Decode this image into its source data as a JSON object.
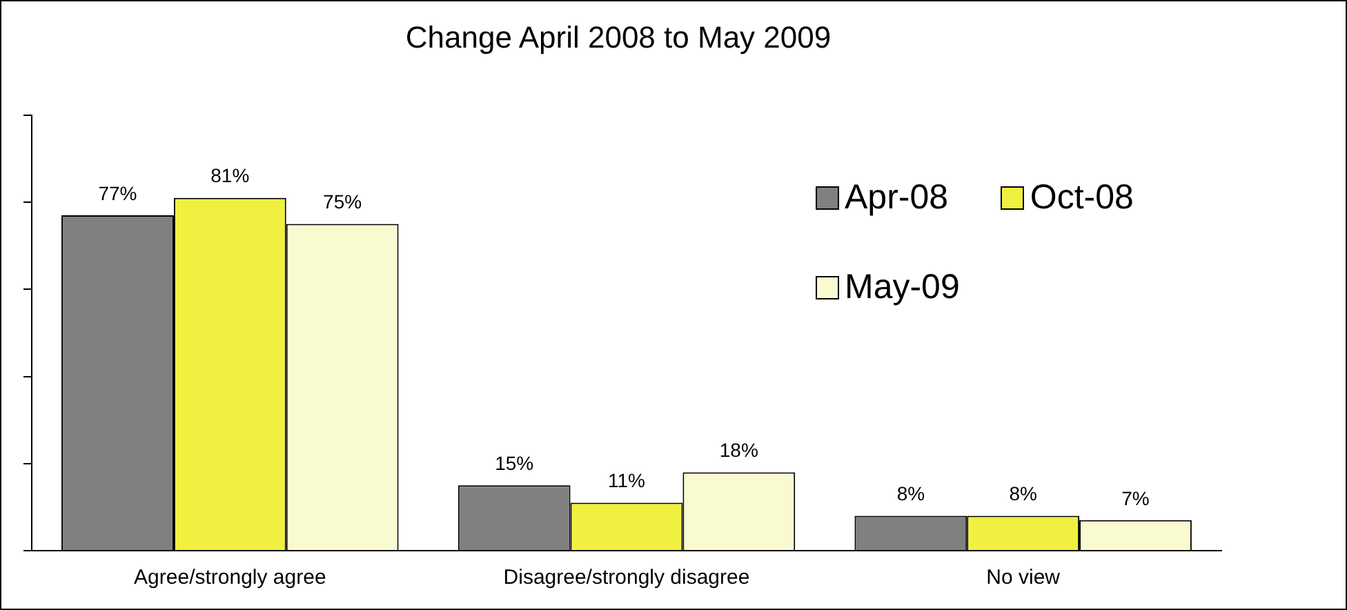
{
  "chart_data": {
    "type": "bar",
    "title": "Change April 2008 to May 2009",
    "categories": [
      "Agree/strongly agree",
      "Disagree/strongly disagree",
      "No view"
    ],
    "series": [
      {
        "name": "Apr-08",
        "color": "#808080",
        "values": [
          77,
          15,
          8
        ],
        "value_labels": [
          "77%",
          "15%",
          "8%"
        ]
      },
      {
        "name": "Oct-08",
        "color": "#f0f040",
        "values": [
          81,
          11,
          8
        ],
        "value_labels": [
          "81%",
          "11%",
          "8%"
        ]
      },
      {
        "name": "May-09",
        "color": "#fafad0",
        "values": [
          75,
          18,
          7
        ],
        "value_labels": [
          "75%",
          "18%",
          "7%"
        ]
      }
    ],
    "ylim": [
      0,
      100
    ],
    "yticks": [
      {
        "value": 0,
        "label": null
      },
      {
        "value": 20,
        "label": null
      },
      {
        "value": 40,
        "label": null
      },
      {
        "value": 60,
        "label": null
      },
      {
        "value": 80,
        "label": null
      },
      {
        "value": 100,
        "label": null
      }
    ],
    "tick_labels": "x",
    "grid": false,
    "legend": "top right"
  }
}
